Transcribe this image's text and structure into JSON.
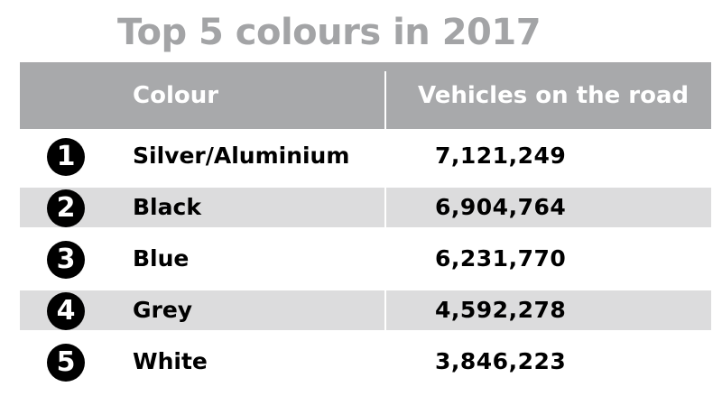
{
  "chart_data": {
    "type": "table",
    "title": "Top 5 colours in 2017",
    "columns": [
      "Colour",
      "Vehicles on the road"
    ],
    "rows": [
      {
        "rank": "1",
        "colour": "Silver/Aluminium",
        "vehicles": "7,121,249"
      },
      {
        "rank": "2",
        "colour": "Black",
        "vehicles": "6,904,764"
      },
      {
        "rank": "3",
        "colour": "Blue",
        "vehicles": "6,231,770"
      },
      {
        "rank": "4",
        "colour": "Grey",
        "vehicles": "4,592,278"
      },
      {
        "rank": "5",
        "colour": "White",
        "vehicles": "3,846,223"
      }
    ]
  },
  "colors": {
    "title": "#a3a4a6",
    "header_bg": "#a8a9ab",
    "row_shade": "#dcdcdd",
    "badge": "#000000"
  }
}
